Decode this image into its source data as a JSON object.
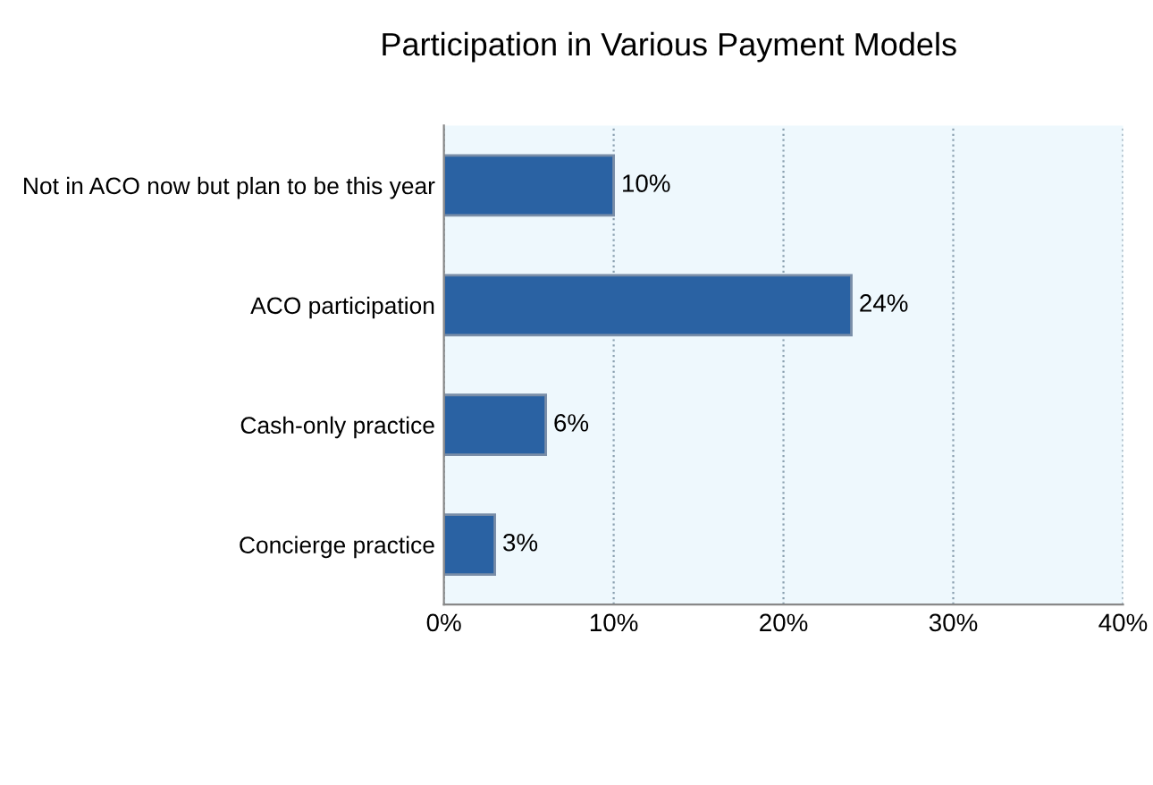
{
  "chart_data": {
    "type": "bar",
    "orientation": "horizontal",
    "title": "Participation in Various Payment Models",
    "categories": [
      "Not in ACO now but plan to be this year",
      "ACO participation",
      "Cash-only practice",
      "Concierge practice"
    ],
    "values": [
      10,
      24,
      6,
      3
    ],
    "value_labels": [
      "10%",
      "24%",
      "6%",
      "3%"
    ],
    "color": "#2a62a3",
    "xlim": [
      0,
      40
    ],
    "xticks": [
      {
        "value": 0,
        "label": "0%"
      },
      {
        "value": 10,
        "label": "10%"
      },
      {
        "value": 20,
        "label": "20%"
      },
      {
        "value": 30,
        "label": "30%"
      },
      {
        "value": 40,
        "label": "40%"
      }
    ],
    "grid": "x",
    "legend": false
  }
}
